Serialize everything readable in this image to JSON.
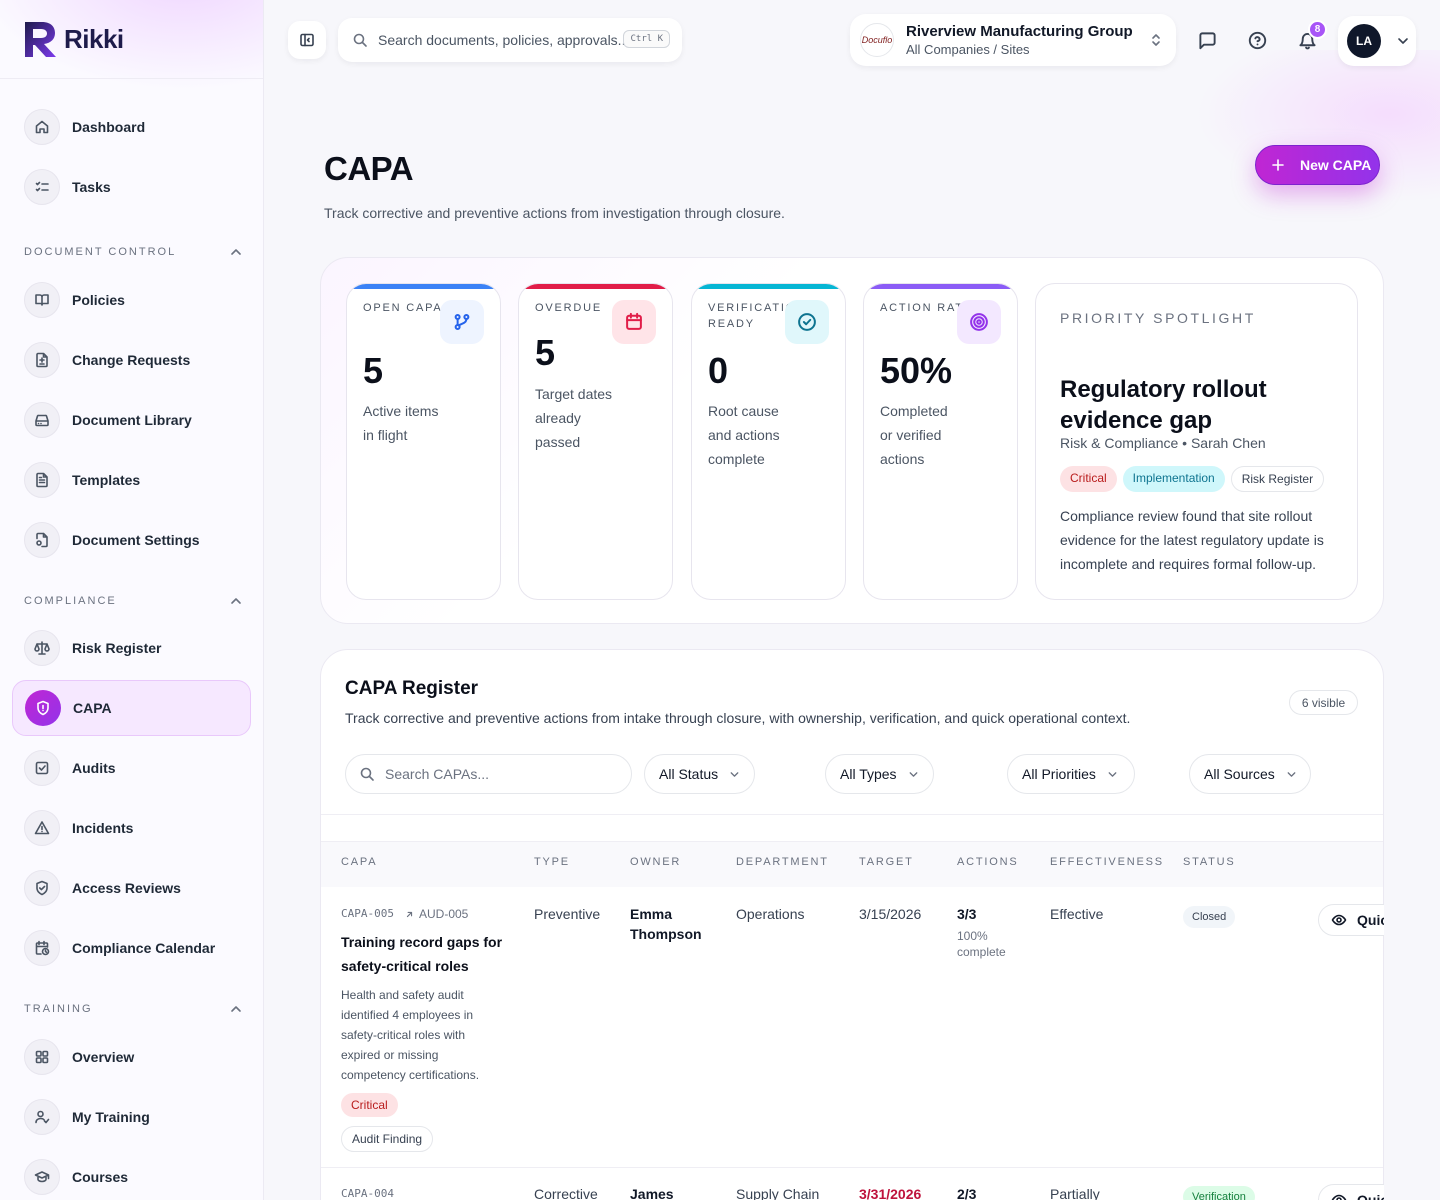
{
  "app": {
    "name": "Rikki"
  },
  "sidebar": {
    "top": [
      {
        "label": "Dashboard",
        "icon": "home-icon"
      },
      {
        "label": "Tasks",
        "icon": "checklist-icon"
      }
    ],
    "sections": [
      {
        "title": "DOCUMENT CONTROL",
        "items": [
          {
            "label": "Policies"
          },
          {
            "label": "Change Requests"
          },
          {
            "label": "Document Library"
          },
          {
            "label": "Templates"
          },
          {
            "label": "Document Settings"
          }
        ]
      },
      {
        "title": "COMPLIANCE",
        "items": [
          {
            "label": "Risk Register"
          },
          {
            "label": "CAPA"
          },
          {
            "label": "Audits"
          },
          {
            "label": "Incidents"
          },
          {
            "label": "Access Reviews"
          },
          {
            "label": "Compliance Calendar"
          }
        ]
      },
      {
        "title": "TRAINING",
        "items": [
          {
            "label": "Overview"
          },
          {
            "label": "My Training"
          },
          {
            "label": "Courses"
          }
        ]
      }
    ],
    "active": "CAPA"
  },
  "topbar": {
    "search_placeholder": "Search documents, policies, approvals...",
    "shortcut": "Ctrl K",
    "org_name": "Riverview Manufacturing Group",
    "org_scope": "All Companies / Sites",
    "org_logo_text": "Docuflo",
    "notifications": "8",
    "user_initials": "LA"
  },
  "page": {
    "title": "CAPA",
    "subtitle": "Track corrective and preventive actions from investigation through closure.",
    "new_button": "New CAPA"
  },
  "stats": [
    {
      "label": "OPEN CAPAS",
      "value": "5",
      "desc": "Active items in flight",
      "color": "#3b82f6",
      "icon": "git-branch-icon"
    },
    {
      "label": "OVERDUE",
      "value": "5",
      "desc": "Target dates already passed",
      "color": "#e11d48",
      "icon": "calendar-icon"
    },
    {
      "label": "VERIFICATION READY",
      "value": "0",
      "desc": "Root cause and actions complete",
      "color": "#06b6d4",
      "icon": "check-circle-icon"
    },
    {
      "label": "ACTION RATE",
      "value": "50%",
      "desc": "Completed or verified actions",
      "color": "#8b5cf6",
      "icon": "target-icon"
    }
  ],
  "spotlight": {
    "kicker": "PRIORITY SPOTLIGHT",
    "title": "Regulatory rollout evidence gap",
    "meta": "Risk & Compliance • Sarah Chen",
    "tags": [
      "Critical",
      "Implementation",
      "Risk Register"
    ],
    "description": "Compliance review found that site rollout evidence for the latest regulatory update is incomplete and requires formal follow-up."
  },
  "register": {
    "title": "CAPA Register",
    "subtitle": "Track corrective and preventive actions from intake through closure, with ownership, verification, and quick operational context.",
    "visible": "6 visible",
    "search_placeholder": "Search CAPAs...",
    "filters": [
      "All Status",
      "All Types",
      "All Priorities",
      "All Sources"
    ],
    "columns": [
      "CAPA",
      "TYPE",
      "OWNER",
      "DEPARTMENT",
      "TARGET",
      "ACTIONS",
      "EFFECTIVENESS",
      "STATUS"
    ],
    "rows": [
      {
        "id": "CAPA-005",
        "source": "AUD-005",
        "title": "Training record gaps for safety-critical roles",
        "desc": "Health and safety audit identified 4 employees in safety-critical roles with expired or missing competency certifications.",
        "priority": "Critical",
        "origin": "Audit Finding",
        "type": "Preventive",
        "owner": "Emma Thompson",
        "department": "Operations",
        "target": "3/15/2026",
        "actions": "3/3",
        "actions_sub": "100% complete",
        "effectiveness": "Effective",
        "status": "Closed",
        "quick": "Quick"
      },
      {
        "id": "CAPA-004",
        "source": "",
        "title": "",
        "desc": "",
        "priority": "",
        "origin": "",
        "type": "Corrective",
        "owner": "James",
        "department": "Supply Chain",
        "target": "3/31/2026",
        "actions": "2/3",
        "actions_sub": "",
        "effectiveness": "Partially",
        "status": "Verification",
        "quick": "Quick"
      }
    ]
  }
}
